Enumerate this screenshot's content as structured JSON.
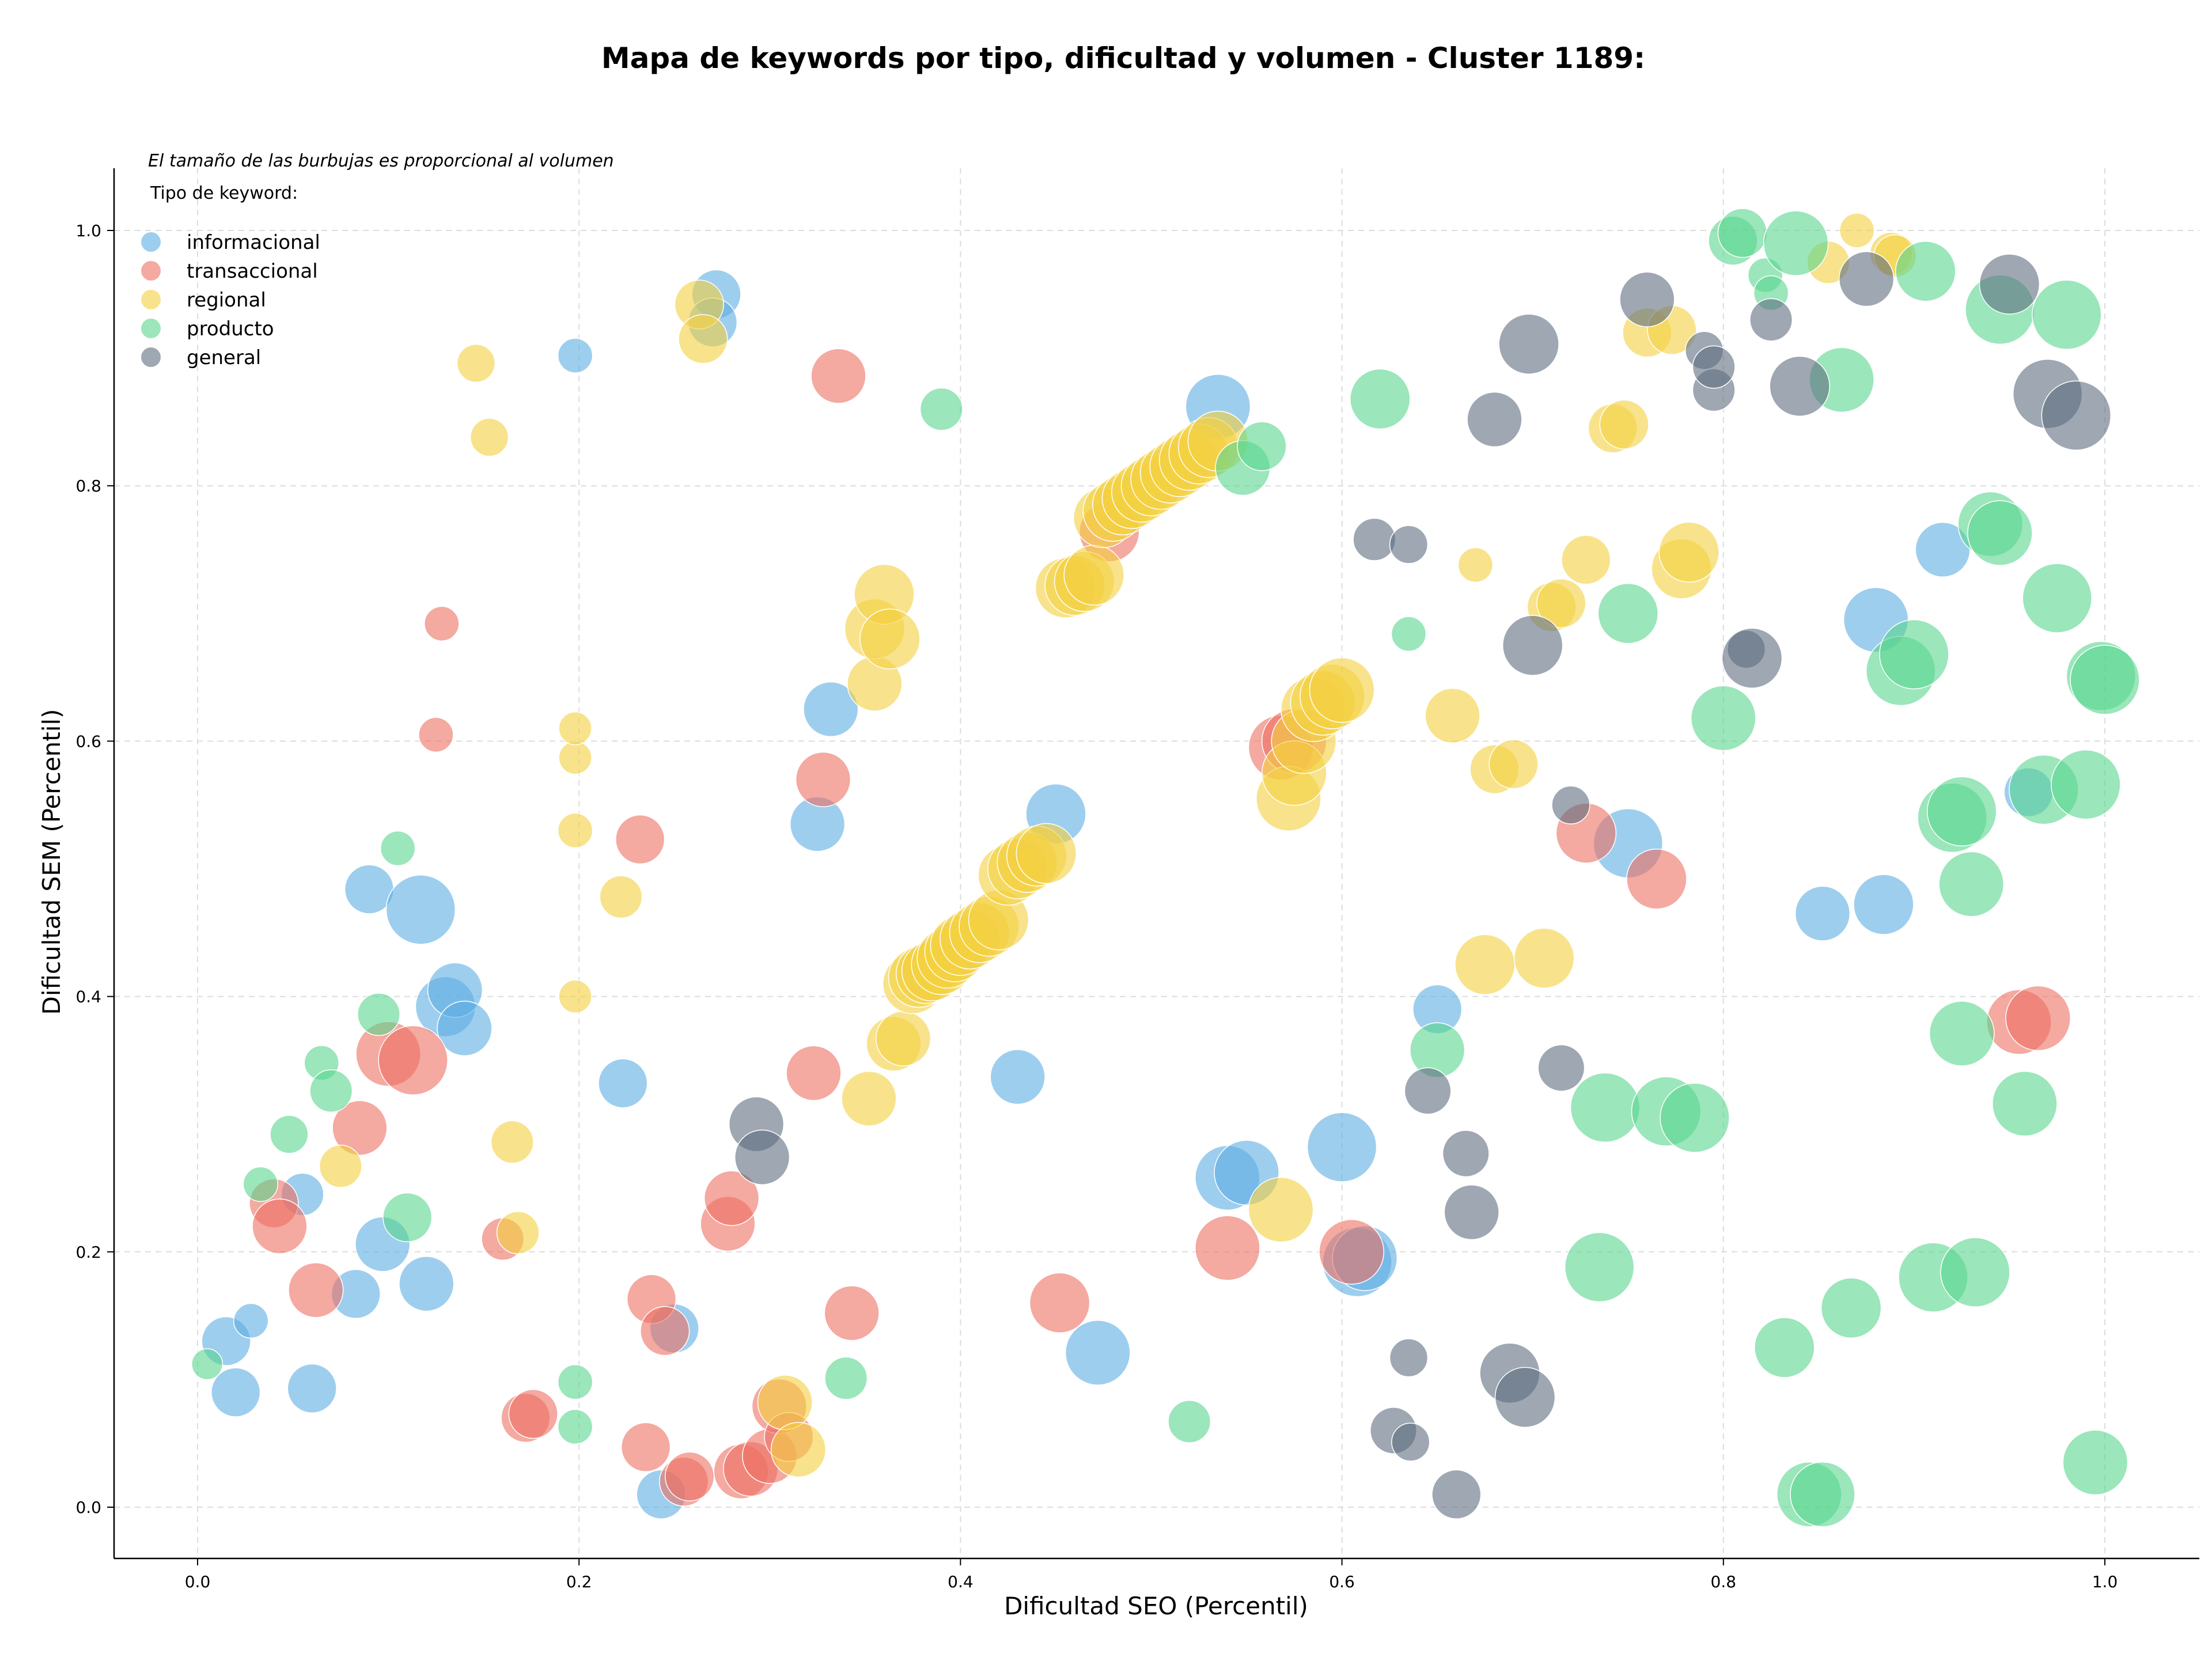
{
  "chart_data": {
    "type": "scatter",
    "title": "Mapa de keywords por tipo, dificultad y volumen - Cluster 1189:",
    "xlabel": "Dificultad SEO (Percentil)",
    "ylabel": "Dificultad SEM (Percentil)",
    "size_note": "El tamaño de las burbujas es proporcional al volumen",
    "legend_title": "Tipo de keyword:",
    "legend_position": "top-left",
    "xlim": [
      -0.04,
      1.05
    ],
    "ylim": [
      -0.04,
      1.05
    ],
    "x_ticks": [
      "0.0",
      "0.2",
      "0.4",
      "0.6",
      "0.8",
      "1.0"
    ],
    "y_ticks": [
      "0.0",
      "0.2",
      "0.4",
      "0.6",
      "0.8",
      "1.0"
    ],
    "grid": true,
    "series": [
      {
        "name": "informacional",
        "color": "#5dade2",
        "points": [
          [
            0.02,
            0.09,
            2
          ],
          [
            0.015,
            0.13,
            2
          ],
          [
            0.028,
            0.146,
            1
          ],
          [
            0.055,
            0.245,
            1.5
          ],
          [
            0.06,
            0.093,
            2
          ],
          [
            0.083,
            0.167,
            2
          ],
          [
            0.097,
            0.206,
            2.5
          ],
          [
            0.12,
            0.175,
            2.5
          ],
          [
            0.09,
            0.484,
            2
          ],
          [
            0.117,
            0.468,
            4
          ],
          [
            0.13,
            0.392,
            3
          ],
          [
            0.135,
            0.405,
            2.5
          ],
          [
            0.14,
            0.375,
            2.5
          ],
          [
            0.198,
            0.902,
            1
          ],
          [
            0.223,
            0.332,
            2
          ],
          [
            0.243,
            0.01,
            2
          ],
          [
            0.25,
            0.14,
            2
          ],
          [
            0.272,
            0.95,
            2
          ],
          [
            0.27,
            0.928,
            2
          ],
          [
            0.325,
            0.535,
            2.5
          ],
          [
            0.332,
            0.625,
            2.5
          ],
          [
            0.43,
            0.337,
            2.5
          ],
          [
            0.45,
            0.543,
            3
          ],
          [
            0.472,
            0.121,
            3.5
          ],
          [
            0.535,
            0.862,
            3.5
          ],
          [
            0.54,
            0.258,
            3.5
          ],
          [
            0.55,
            0.262,
            3.5
          ],
          [
            0.6,
            0.282,
            4
          ],
          [
            0.608,
            0.192,
            4
          ],
          [
            0.612,
            0.195,
            3.5
          ],
          [
            0.65,
            0.39,
            2
          ],
          [
            0.75,
            0.52,
            4
          ],
          [
            0.852,
            0.465,
            2.5
          ],
          [
            0.88,
            0.695,
            3.5
          ],
          [
            0.884,
            0.472,
            3
          ],
          [
            0.915,
            0.75,
            2.5
          ],
          [
            0.96,
            0.56,
            2
          ]
        ]
      },
      {
        "name": "transaccional",
        "color": "#ec7063",
        "points": [
          [
            0.04,
            0.238,
            2
          ],
          [
            0.043,
            0.22,
            2.5
          ],
          [
            0.062,
            0.17,
            2.5
          ],
          [
            0.085,
            0.297,
            2.5
          ],
          [
            0.1,
            0.355,
            3.5
          ],
          [
            0.113,
            0.35,
            4
          ],
          [
            0.125,
            0.605,
            1
          ],
          [
            0.128,
            0.692,
            1
          ],
          [
            0.16,
            0.21,
            1.5
          ],
          [
            0.172,
            0.07,
            2
          ],
          [
            0.176,
            0.073,
            2
          ],
          [
            0.232,
            0.523,
            2
          ],
          [
            0.235,
            0.047,
            2
          ],
          [
            0.238,
            0.163,
            2
          ],
          [
            0.245,
            0.138,
            2
          ],
          [
            0.255,
            0.02,
            2
          ],
          [
            0.258,
            0.024,
            2
          ],
          [
            0.278,
            0.222,
            2.5
          ],
          [
            0.28,
            0.242,
            2.5
          ],
          [
            0.285,
            0.028,
            2.5
          ],
          [
            0.29,
            0.03,
            2.5
          ],
          [
            0.3,
            0.04,
            2.5
          ],
          [
            0.305,
            0.079,
            2.5
          ],
          [
            0.31,
            0.055,
            2
          ],
          [
            0.323,
            0.34,
            2.5
          ],
          [
            0.328,
            0.57,
            2.5
          ],
          [
            0.336,
            0.886,
            2.5
          ],
          [
            0.343,
            0.152,
            2.5
          ],
          [
            0.452,
            0.16,
            3
          ],
          [
            0.478,
            0.764,
            3
          ],
          [
            0.54,
            0.203,
            3.5
          ],
          [
            0.568,
            0.595,
            3.5
          ],
          [
            0.575,
            0.6,
            3.5
          ],
          [
            0.605,
            0.2,
            3.5
          ],
          [
            0.728,
            0.528,
            3
          ],
          [
            0.765,
            0.492,
            3
          ],
          [
            0.955,
            0.38,
            3.5
          ],
          [
            0.965,
            0.383,
            3.5
          ]
        ]
      },
      {
        "name": "regional",
        "color": "#f4d03f",
        "points": [
          [
            0.075,
            0.267,
            1.5
          ],
          [
            0.146,
            0.896,
            1.2
          ],
          [
            0.153,
            0.838,
            1.2
          ],
          [
            0.165,
            0.286,
            1.5
          ],
          [
            0.168,
            0.215,
            1.5
          ],
          [
            0.198,
            0.4,
            0.9
          ],
          [
            0.198,
            0.53,
            1
          ],
          [
            0.198,
            0.587,
            0.9
          ],
          [
            0.198,
            0.61,
            0.9
          ],
          [
            0.222,
            0.478,
            1.5
          ],
          [
            0.263,
            0.942,
            2
          ],
          [
            0.265,
            0.915,
            2
          ],
          [
            0.308,
            0.082,
            2.5
          ],
          [
            0.315,
            0.045,
            2.5
          ],
          [
            0.352,
            0.32,
            2.5
          ],
          [
            0.355,
            0.645,
            2.5
          ],
          [
            0.355,
            0.688,
            3
          ],
          [
            0.36,
            0.715,
            3
          ],
          [
            0.363,
            0.68,
            3
          ],
          [
            0.365,
            0.363,
            2.5
          ],
          [
            0.37,
            0.367,
            2.5
          ],
          [
            0.375,
            0.41,
            3
          ],
          [
            0.378,
            0.415,
            3
          ],
          [
            0.382,
            0.418,
            3
          ],
          [
            0.385,
            0.42,
            3
          ],
          [
            0.39,
            0.425,
            3
          ],
          [
            0.393,
            0.43,
            3
          ],
          [
            0.397,
            0.435,
            3
          ],
          [
            0.4,
            0.44,
            3
          ],
          [
            0.405,
            0.445,
            3
          ],
          [
            0.41,
            0.45,
            3
          ],
          [
            0.415,
            0.455,
            3
          ],
          [
            0.42,
            0.46,
            3
          ],
          [
            0.425,
            0.495,
            3
          ],
          [
            0.43,
            0.5,
            3
          ],
          [
            0.435,
            0.505,
            3
          ],
          [
            0.44,
            0.51,
            3
          ],
          [
            0.445,
            0.512,
            3
          ],
          [
            0.455,
            0.72,
            3
          ],
          [
            0.46,
            0.722,
            3
          ],
          [
            0.465,
            0.725,
            3
          ],
          [
            0.47,
            0.73,
            3
          ],
          [
            0.475,
            0.775,
            3
          ],
          [
            0.48,
            0.78,
            3
          ],
          [
            0.485,
            0.785,
            3
          ],
          [
            0.49,
            0.79,
            3
          ],
          [
            0.495,
            0.795,
            3
          ],
          [
            0.5,
            0.8,
            3
          ],
          [
            0.505,
            0.805,
            3
          ],
          [
            0.51,
            0.81,
            3
          ],
          [
            0.515,
            0.815,
            3
          ],
          [
            0.52,
            0.82,
            3
          ],
          [
            0.525,
            0.825,
            3
          ],
          [
            0.53,
            0.83,
            3
          ],
          [
            0.535,
            0.835,
            3
          ],
          [
            0.568,
            0.233,
            3.5
          ],
          [
            0.572,
            0.555,
            3.5
          ],
          [
            0.575,
            0.575,
            3.5
          ],
          [
            0.58,
            0.6,
            3.5
          ],
          [
            0.585,
            0.625,
            3.5
          ],
          [
            0.59,
            0.63,
            3.5
          ],
          [
            0.595,
            0.635,
            3.5
          ],
          [
            0.6,
            0.64,
            3.5
          ],
          [
            0.658,
            0.62,
            2.5
          ],
          [
            0.67,
            0.738,
            1
          ],
          [
            0.675,
            0.425,
            3
          ],
          [
            0.68,
            0.578,
            2
          ],
          [
            0.69,
            0.582,
            2
          ],
          [
            0.706,
            0.43,
            3
          ],
          [
            0.71,
            0.705,
            2
          ],
          [
            0.715,
            0.708,
            2
          ],
          [
            0.728,
            0.742,
            2
          ],
          [
            0.742,
            0.845,
            2
          ],
          [
            0.748,
            0.848,
            2
          ],
          [
            0.76,
            0.92,
            2
          ],
          [
            0.773,
            0.922,
            2
          ],
          [
            0.778,
            0.735,
            3
          ],
          [
            0.782,
            0.748,
            3
          ],
          [
            0.855,
            0.975,
            1.5
          ],
          [
            0.87,
            1.0,
            1
          ],
          [
            0.888,
            0.982,
            1.5
          ],
          [
            0.89,
            0.98,
            1.5
          ]
        ]
      },
      {
        "name": "producto",
        "color": "#58d68d",
        "points": [
          [
            0.005,
            0.112,
            0.8
          ],
          [
            0.033,
            0.253,
            1
          ],
          [
            0.048,
            0.292,
            1.2
          ],
          [
            0.065,
            0.348,
            1
          ],
          [
            0.07,
            0.326,
            1.5
          ],
          [
            0.095,
            0.386,
            1.5
          ],
          [
            0.105,
            0.516,
            1
          ],
          [
            0.11,
            0.227,
            2
          ],
          [
            0.198,
            0.063,
            1
          ],
          [
            0.198,
            0.098,
            1
          ],
          [
            0.34,
            0.101,
            1.5
          ],
          [
            0.39,
            0.86,
            1.5
          ],
          [
            0.52,
            0.067,
            1.5
          ],
          [
            0.548,
            0.814,
            2.5
          ],
          [
            0.558,
            0.831,
            2
          ],
          [
            0.62,
            0.868,
            3
          ],
          [
            0.635,
            0.684,
            1
          ],
          [
            0.65,
            0.358,
            2.5
          ],
          [
            0.735,
            0.188,
            4
          ],
          [
            0.738,
            0.313,
            4
          ],
          [
            0.75,
            0.7,
            3
          ],
          [
            0.77,
            0.31,
            4
          ],
          [
            0.785,
            0.305,
            4
          ],
          [
            0.8,
            0.618,
            3.5
          ],
          [
            0.805,
            0.992,
            2
          ],
          [
            0.81,
            0.998,
            2
          ],
          [
            0.822,
            0.965,
            1
          ],
          [
            0.825,
            0.951,
            1
          ],
          [
            0.832,
            0.125,
            3
          ],
          [
            0.838,
            0.99,
            3.5
          ],
          [
            0.845,
            0.01,
            3.5
          ],
          [
            0.852,
            0.01,
            3.5
          ],
          [
            0.862,
            0.883,
            3.5
          ],
          [
            0.867,
            0.156,
            3
          ],
          [
            0.893,
            0.655,
            4
          ],
          [
            0.9,
            0.668,
            4
          ],
          [
            0.906,
            0.968,
            3
          ],
          [
            0.91,
            0.18,
            4
          ],
          [
            0.92,
            0.54,
            4
          ],
          [
            0.925,
            0.545,
            4
          ],
          [
            0.925,
            0.371,
            3.5
          ],
          [
            0.93,
            0.488,
            3.5
          ],
          [
            0.932,
            0.184,
            4
          ],
          [
            0.94,
            0.77,
            3.5
          ],
          [
            0.945,
            0.763,
            3.5
          ],
          [
            0.945,
            0.938,
            4
          ],
          [
            0.958,
            0.316,
            3.5
          ],
          [
            0.968,
            0.562,
            4
          ],
          [
            0.975,
            0.712,
            4
          ],
          [
            0.98,
            0.934,
            4
          ],
          [
            0.99,
            0.566,
            4
          ],
          [
            0.995,
            0.035,
            3.5
          ],
          [
            0.998,
            0.651,
            4
          ],
          [
            1.0,
            0.648,
            4
          ]
        ]
      },
      {
        "name": "general",
        "color": "#5d6d7e",
        "points": [
          [
            0.293,
            0.3,
            2.5
          ],
          [
            0.296,
            0.274,
            2.5
          ],
          [
            0.617,
            0.758,
            1.5
          ],
          [
            0.627,
            0.06,
            1.8
          ],
          [
            0.635,
            0.117,
            1.2
          ],
          [
            0.635,
            0.754,
            1.2
          ],
          [
            0.636,
            0.051,
            1.2
          ],
          [
            0.645,
            0.326,
            1.8
          ],
          [
            0.66,
            0.01,
            2
          ],
          [
            0.665,
            0.277,
            1.8
          ],
          [
            0.668,
            0.231,
            2.5
          ],
          [
            0.68,
            0.852,
            2.5
          ],
          [
            0.688,
            0.105,
            3
          ],
          [
            0.696,
            0.086,
            3
          ],
          [
            0.698,
            0.911,
            3
          ],
          [
            0.7,
            0.675,
            3
          ],
          [
            0.715,
            0.344,
            1.8
          ],
          [
            0.72,
            0.55,
            1.2
          ],
          [
            0.76,
            0.946,
            2.5
          ],
          [
            0.79,
            0.906,
            1.2
          ],
          [
            0.795,
            0.875,
            1.5
          ],
          [
            0.795,
            0.893,
            1.5
          ],
          [
            0.812,
            0.672,
            1.2
          ],
          [
            0.815,
            0.665,
            3
          ],
          [
            0.825,
            0.93,
            1.5
          ],
          [
            0.84,
            0.878,
            3
          ],
          [
            0.875,
            0.962,
            2.5
          ],
          [
            0.95,
            0.958,
            3
          ],
          [
            0.97,
            0.872,
            4
          ],
          [
            0.985,
            0.855,
            4
          ]
        ]
      }
    ]
  }
}
